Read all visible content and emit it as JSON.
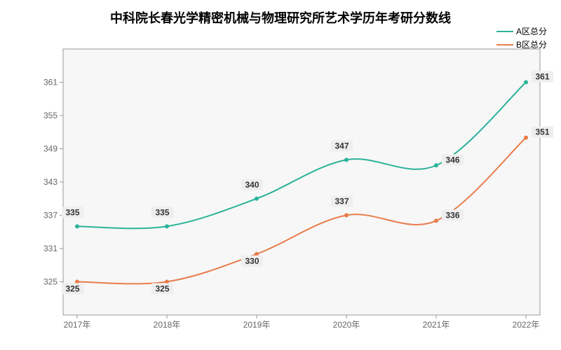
{
  "title": "中科院长春光学精密机械与物理研究所艺术学历年考研分数线",
  "legend": {
    "items": [
      {
        "label": "A区总分",
        "color": "#2bb39a"
      },
      {
        "label": "B区总分",
        "color": "#e87c4a"
      }
    ]
  },
  "chart": {
    "type": "line",
    "background_color": "#ffffff",
    "plot_background_color": "#f7f7f7",
    "border_color": "#999999",
    "axis_color": "#666666",
    "grid_color": "#e0e0e0",
    "label_bg_color": "#eeeeee",
    "label_text_color": "#333333",
    "line_width": 2,
    "marker_radius": 3,
    "smooth": true,
    "x": {
      "categories": [
        "2017年",
        "2018年",
        "2019年",
        "2020年",
        "2021年",
        "2022年"
      ],
      "fontsize": 12
    },
    "y": {
      "min": 319,
      "max": 367,
      "tick_step": 6,
      "fontsize": 12
    },
    "series": [
      {
        "name": "A区总分",
        "color": "#2bb39a",
        "values": [
          335,
          335,
          340,
          347,
          346,
          361
        ],
        "label_offsets": [
          [
            -18,
            -16
          ],
          [
            -18,
            -16
          ],
          [
            -18,
            -16
          ],
          [
            -18,
            -16
          ],
          [
            12,
            -4
          ],
          [
            12,
            -4
          ]
        ]
      },
      {
        "name": "B区总分",
        "color": "#e87c4a",
        "values": [
          325,
          325,
          330,
          337,
          336,
          351
        ],
        "label_offsets": [
          [
            -18,
            14
          ],
          [
            -18,
            14
          ],
          [
            -18,
            14
          ],
          [
            -18,
            -16
          ],
          [
            12,
            -4
          ],
          [
            12,
            -4
          ]
        ]
      }
    ]
  }
}
